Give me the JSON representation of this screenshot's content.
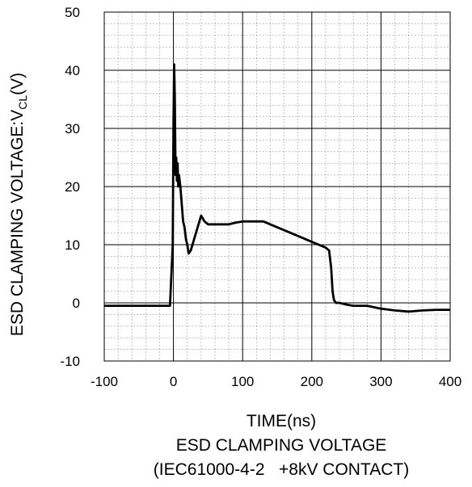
{
  "chart_data": {
    "type": "line",
    "title": "",
    "xlabel": "TIME(ns)",
    "ylabel": "ESD CLAMPING VOLTAGE:V",
    "ylabel_subscript": "CL",
    "ylabel_suffix": "(V)",
    "xlim": [
      -100,
      400
    ],
    "ylim": [
      -10,
      50
    ],
    "xticks": [
      -100,
      0,
      100,
      200,
      300,
      400
    ],
    "yticks": [
      -10,
      0,
      10,
      20,
      30,
      40,
      50
    ],
    "grid": true,
    "minor_grid": true,
    "series": [
      {
        "x": [
          -100,
          -80,
          -60,
          -40,
          -20,
          -5,
          -1,
          0,
          1,
          2,
          3,
          4,
          5,
          6,
          7,
          8,
          10,
          12,
          14,
          16,
          18,
          20,
          22,
          25,
          30,
          35,
          40,
          45,
          50,
          60,
          70,
          80,
          90,
          100,
          110,
          120,
          130,
          140,
          150,
          160,
          170,
          180,
          190,
          200,
          210,
          220,
          225,
          228,
          230,
          232,
          235,
          240,
          250,
          260,
          280,
          300,
          320,
          340,
          360,
          380,
          400
        ],
        "y": [
          -0.5,
          -0.5,
          -0.5,
          -0.5,
          -0.5,
          -0.5,
          10,
          30,
          41,
          35,
          22,
          25,
          21,
          24,
          20,
          22,
          20,
          17,
          14,
          13,
          11,
          10,
          8.5,
          9,
          11,
          13,
          15,
          14,
          13.5,
          13.5,
          13.5,
          13.5,
          13.8,
          14,
          14,
          14,
          14,
          13.5,
          13,
          12.5,
          12,
          11.5,
          11,
          10.5,
          10,
          9.5,
          9,
          6,
          2,
          0.5,
          0,
          0,
          -0.3,
          -0.5,
          -0.5,
          -1,
          -1.3,
          -1.5,
          -1.3,
          -1.2,
          -1.2
        ]
      }
    ]
  },
  "caption": {
    "line1": "ESD CLAMPING VOLTAGE",
    "line2": "(IEC61000-4-2   +8kV CONTACT)"
  }
}
